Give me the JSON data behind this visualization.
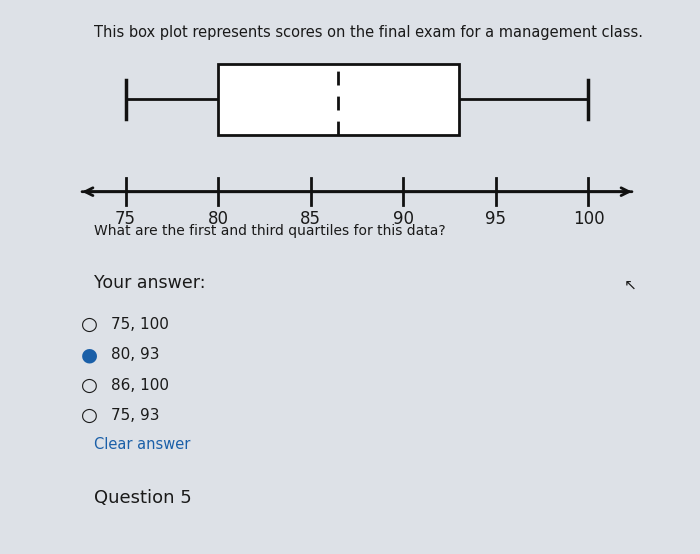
{
  "title": "This box plot represents scores on the final exam for a management class.",
  "question": "What are the first and third quartiles for this data?",
  "your_answer_label": "Your answer:",
  "options": [
    {
      "text": "75, 100",
      "selected": false
    },
    {
      "text": "80, 93",
      "selected": true
    },
    {
      "text": "86, 100",
      "selected": false
    },
    {
      "text": "75, 93",
      "selected": false
    }
  ],
  "clear_answer": "Clear answer",
  "question5": "Question 5",
  "boxplot": {
    "min": 75,
    "q1": 80,
    "median": 86.5,
    "q3": 93,
    "max": 100
  },
  "axis": {
    "xmin": 72,
    "xmax": 103,
    "ticks": [
      75,
      80,
      85,
      90,
      95,
      100
    ]
  },
  "bg_color": "#dde1e7",
  "box_facecolor": "#ffffff",
  "box_edge_color": "#111111",
  "whisker_color": "#111111",
  "text_color": "#1a1a1a",
  "option_color": "#1a5fa8",
  "selected_color": "#1a5fa8",
  "your_answer_bg": "#c8cdd4",
  "question5_bg": "#c8cdd4",
  "divider_color": "#b0b5bc"
}
